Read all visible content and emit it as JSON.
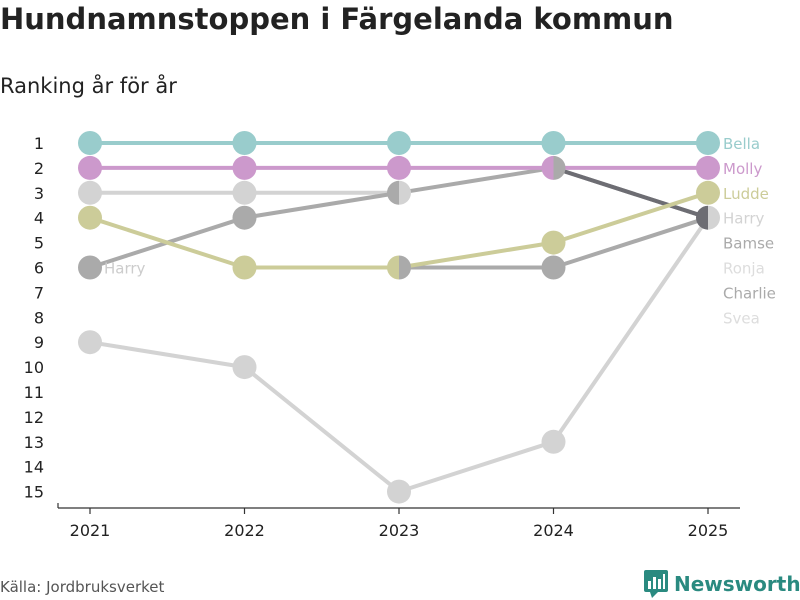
{
  "title": "Hundnamnstoppen i Färgelanda kommun",
  "subtitle": "Ranking år för år",
  "source": "Källa: Jordbruksverket",
  "brand": "Newsworthy",
  "chart_data": {
    "type": "line",
    "title": "Hundnamnstoppen i Färgelanda kommun",
    "subtitle": "Ranking år för år",
    "xlabel": "",
    "ylabel": "",
    "x": [
      "2021",
      "2022",
      "2023",
      "2024",
      "2025"
    ],
    "y_ticks": [
      "1",
      "2",
      "3",
      "4",
      "5",
      "6",
      "7",
      "8",
      "9",
      "10",
      "11",
      "12",
      "13",
      "14",
      "15"
    ],
    "ylim": [
      1,
      15
    ],
    "y_reversed": true,
    "series": [
      {
        "name": "Svea",
        "color": "#d3d3d3",
        "values": [
          9,
          10,
          15,
          13,
          4
        ]
      },
      {
        "name": "Ronja",
        "color": "#d3d3d3",
        "values": [
          3,
          3,
          3,
          null,
          null
        ]
      },
      {
        "name": "Charlie",
        "color": "#aaaaaa",
        "values": [
          6,
          4,
          3,
          2,
          4
        ]
      },
      {
        "name": "Bamse",
        "color": "#aaaaaa",
        "values": [
          null,
          null,
          6,
          6,
          4
        ]
      },
      {
        "name": "Harry",
        "color": "#6d6d73",
        "values": [
          null,
          null,
          null,
          2,
          4
        ]
      },
      {
        "name": "Ludde",
        "color": "#cccc99",
        "values": [
          4,
          6,
          6,
          5,
          3
        ]
      },
      {
        "name": "Molly",
        "color": "#cc99cc",
        "values": [
          2,
          2,
          2,
          2,
          2
        ]
      },
      {
        "name": "Bella",
        "color": "#99cccc",
        "values": [
          1,
          1,
          1,
          1,
          1
        ]
      }
    ],
    "legend": [
      {
        "name": "Bella",
        "color": "#99cccc"
      },
      {
        "name": "Molly",
        "color": "#cc99cc"
      },
      {
        "name": "Ludde",
        "color": "#cccc99"
      },
      {
        "name": "Harry",
        "color": "#d3d3d3"
      },
      {
        "name": "Bamse",
        "color": "#aaaaaa"
      },
      {
        "name": "Ronja",
        "color": "#dddddd"
      },
      {
        "name": "Charlie",
        "color": "#aaaaaa"
      },
      {
        "name": "Svea",
        "color": "#dddddd"
      }
    ],
    "annotations": [
      {
        "text": "Harry",
        "x": "2021",
        "y": 6
      }
    ],
    "legend_position": "right"
  }
}
